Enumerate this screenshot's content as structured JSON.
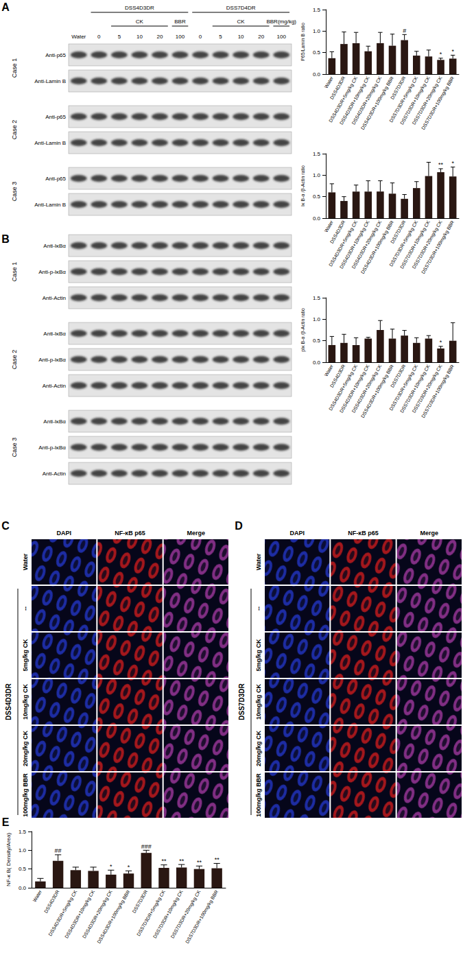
{
  "figure": {
    "panel_labels": [
      "A",
      "B",
      "C",
      "D",
      "E"
    ],
    "lane_header": [
      {
        "lanes": [
          "Water"
        ]
      },
      {
        "text": "DSS4D3DR",
        "sub": [
          {
            "lanes": [
              "0"
            ]
          },
          {
            "text": "CK",
            "lanes": [
              "5",
              "10",
              "20"
            ]
          },
          {
            "text": "BBR",
            "lanes": [
              "100"
            ]
          }
        ]
      },
      {
        "text": "DSS7D4DR",
        "sub": [
          {
            "lanes": [
              "0"
            ]
          },
          {
            "text": "CK",
            "lanes": [
              "5",
              "10",
              "20"
            ]
          },
          {
            "text": "BBR(mg/kg)",
            "lanes": [
              "100"
            ]
          }
        ]
      }
    ],
    "blots_A": [
      {
        "case": "Case 1",
        "rows": [
          "Anti-p65",
          "Anti-Lamin B"
        ]
      },
      {
        "case": "Case 2",
        "rows": [
          "Anti-p65",
          "Anti-Lamin B"
        ]
      },
      {
        "case": "Case 3",
        "rows": [
          "Anti-p65",
          "Anti-Lamin B"
        ]
      }
    ],
    "blots_B": [
      {
        "case": "Case 1",
        "rows": [
          "Anti-IκBα",
          "Anti-p-IκBα",
          "Anti-Actin"
        ]
      },
      {
        "case": "Case 2",
        "rows": [
          "Anti-IκBα",
          "Anti-p-IκBα",
          "Anti-Actin"
        ]
      },
      {
        "case": "Case 3",
        "rows": [
          "Anti-IκBα",
          "Anti-p-IκBα",
          "Anti-Actin"
        ]
      }
    ],
    "if_C": {
      "columns": [
        "DAPI",
        "NF-κB p65",
        "Merge"
      ],
      "rows": [
        {
          "label": "Water"
        },
        {
          "group": "DSS4D3DR",
          "labels": [
            "--",
            "5mg/kg CK",
            "10mg/kg CK",
            "20mg/kg CK",
            "100mg/kg BBR"
          ]
        }
      ]
    },
    "if_D": {
      "columns": [
        "DAPI",
        "NF-κB p65",
        "Merge"
      ],
      "rows": [
        {
          "label": "Water"
        },
        {
          "group": "DSS7D3DR",
          "labels": [
            "--",
            "5mg/kg CK",
            "10mg/kg CK",
            "20mg/kg CK",
            "100mg/kg BBR"
          ]
        }
      ]
    }
  },
  "chart_data": [
    {
      "type": "bar",
      "ylabel": "P65/Lamin B ratio",
      "categories": [
        "Water",
        "DSS4D3DR",
        "DSS4D3DR+5mg/kg CK",
        "DSS4D3DR+10mg/kg CK",
        "DSS4D3DR+20mg/kg CK",
        "DSS4D3DR+100mg/kg BBR",
        "DSS7D3DR",
        "DSS7D3DR+5mg/kg CK",
        "DSS7D3DR+10mg/kg CK",
        "DSS7D3DR+20mg/kg CK",
        "DSS7D3DR+100mg/kg BBR"
      ],
      "values": [
        0.37,
        0.7,
        0.72,
        0.53,
        0.72,
        0.66,
        0.79,
        0.43,
        0.41,
        0.33,
        0.36
      ],
      "errors": [
        0.15,
        0.28,
        0.25,
        0.12,
        0.25,
        0.27,
        0.13,
        0.1,
        0.15,
        0.04,
        0.08
      ],
      "annotations": [
        null,
        null,
        null,
        null,
        null,
        null,
        "#",
        null,
        null,
        "*",
        "*"
      ],
      "color": "#2a1712",
      "ylim": [
        0,
        1.5
      ],
      "yticks": [
        {
          "value": 0,
          "label": "0.0"
        },
        0.5,
        {
          "value": 1,
          "label": "1.0"
        },
        1.5
      ],
      "grid": false
    },
    {
      "type": "bar",
      "ylabel": "Iκ B-α /β-Actin ratio",
      "categories": [
        "Water",
        "DSS4D3DR",
        "DSS4D3DR+5mg/kg CK",
        "DSS4D3DR+10mg/kg CK",
        "DSS4D3DR+20mg/kg CK",
        "DSS4D3DR+100mg/kg BBR",
        "DSS7D3DR",
        "DSS7D3DR+5mg/kg CK",
        "DSS7D3DR+10mg/kg CK",
        "DSS7D3DR+20mg/kg CK",
        "DSS7D3DR+100mg/kg BBR"
      ],
      "values": [
        0.6,
        0.4,
        0.62,
        0.62,
        0.62,
        0.57,
        0.45,
        0.7,
        0.98,
        1.07,
        0.97
      ],
      "errors": [
        0.2,
        0.1,
        0.15,
        0.25,
        0.25,
        0.25,
        0.1,
        0.15,
        0.32,
        0.08,
        0.22
      ],
      "annotations": [
        null,
        null,
        null,
        null,
        null,
        null,
        null,
        null,
        null,
        "**",
        "*"
      ],
      "color": "#2a1712",
      "ylim": [
        0,
        1.5
      ],
      "yticks": [
        {
          "value": 0,
          "label": "0.0"
        },
        0.5,
        {
          "value": 1,
          "label": "1.0"
        },
        1.5
      ],
      "grid": false
    },
    {
      "type": "bar",
      "ylabel": "pIκ B-α /β-Actin ratio",
      "categories": [
        "Water",
        "DSS4D3DR",
        "DSS4D3DR+5mg/kg CK",
        "DSS4D3DR+10mg/kg CK",
        "DSS4D3DR+20mg/kg CK",
        "DSS4D3DR+100mg/kg BBR",
        "DSS7D3DR",
        "DSS7D3DR+5mg/kg CK",
        "DSS7D3DR+10mg/kg CK",
        "DSS7D3DR+20mg/kg CK",
        "DSS7D3DR+100mg/kg BBR"
      ],
      "values": [
        0.4,
        0.45,
        0.4,
        0.55,
        0.75,
        0.55,
        0.62,
        0.45,
        0.55,
        0.32,
        0.5
      ],
      "errors": [
        0.2,
        0.2,
        0.17,
        0.03,
        0.22,
        0.22,
        0.12,
        0.12,
        0.07,
        0.05,
        0.42
      ],
      "annotations": [
        null,
        null,
        null,
        null,
        null,
        null,
        null,
        null,
        null,
        "*",
        null
      ],
      "color": "#2a1712",
      "ylim": [
        0,
        1.5
      ],
      "yticks": [
        {
          "value": 0,
          "label": "0.0"
        },
        0.5,
        {
          "value": 1,
          "label": "1.0"
        },
        1.5
      ],
      "grid": false
    },
    {
      "type": "bar",
      "ylabel": "NF-κ B( Density/Area)",
      "categories": [
        "Water",
        "DSS4D3DR",
        "DSS4D3DR+5mg/kg CK",
        "DSS4D3DR+10mg/kg CK",
        "DSS4D3DR+20mg/kg CK",
        "DSS4D3DR+100mg/kg BBR",
        "DSS7D3DR",
        "DSS7D3DR+5mg/kg CK",
        "DSS7D3DR+10mg/kg CK",
        "DSS7D3DR+20mg/kg CK",
        "DSS7D3DR+100mg/kg BBR"
      ],
      "values": [
        0.17,
        0.72,
        0.47,
        0.45,
        0.35,
        0.38,
        0.93,
        0.53,
        0.54,
        0.5,
        0.52
      ],
      "errors": [
        0.08,
        0.16,
        0.08,
        0.1,
        0.12,
        0.07,
        0.07,
        0.08,
        0.08,
        0.08,
        0.13
      ],
      "annotations": [
        null,
        "##",
        null,
        null,
        "*",
        "*",
        "###",
        "**",
        "**",
        "**",
        "**"
      ],
      "color": "#2a1712",
      "ylim": [
        0,
        1.5
      ],
      "yticks": [
        {
          "value": 0,
          "label": "0.0"
        },
        0.5,
        {
          "value": 1,
          "label": "1.0"
        },
        1.5
      ],
      "grid": false
    }
  ]
}
